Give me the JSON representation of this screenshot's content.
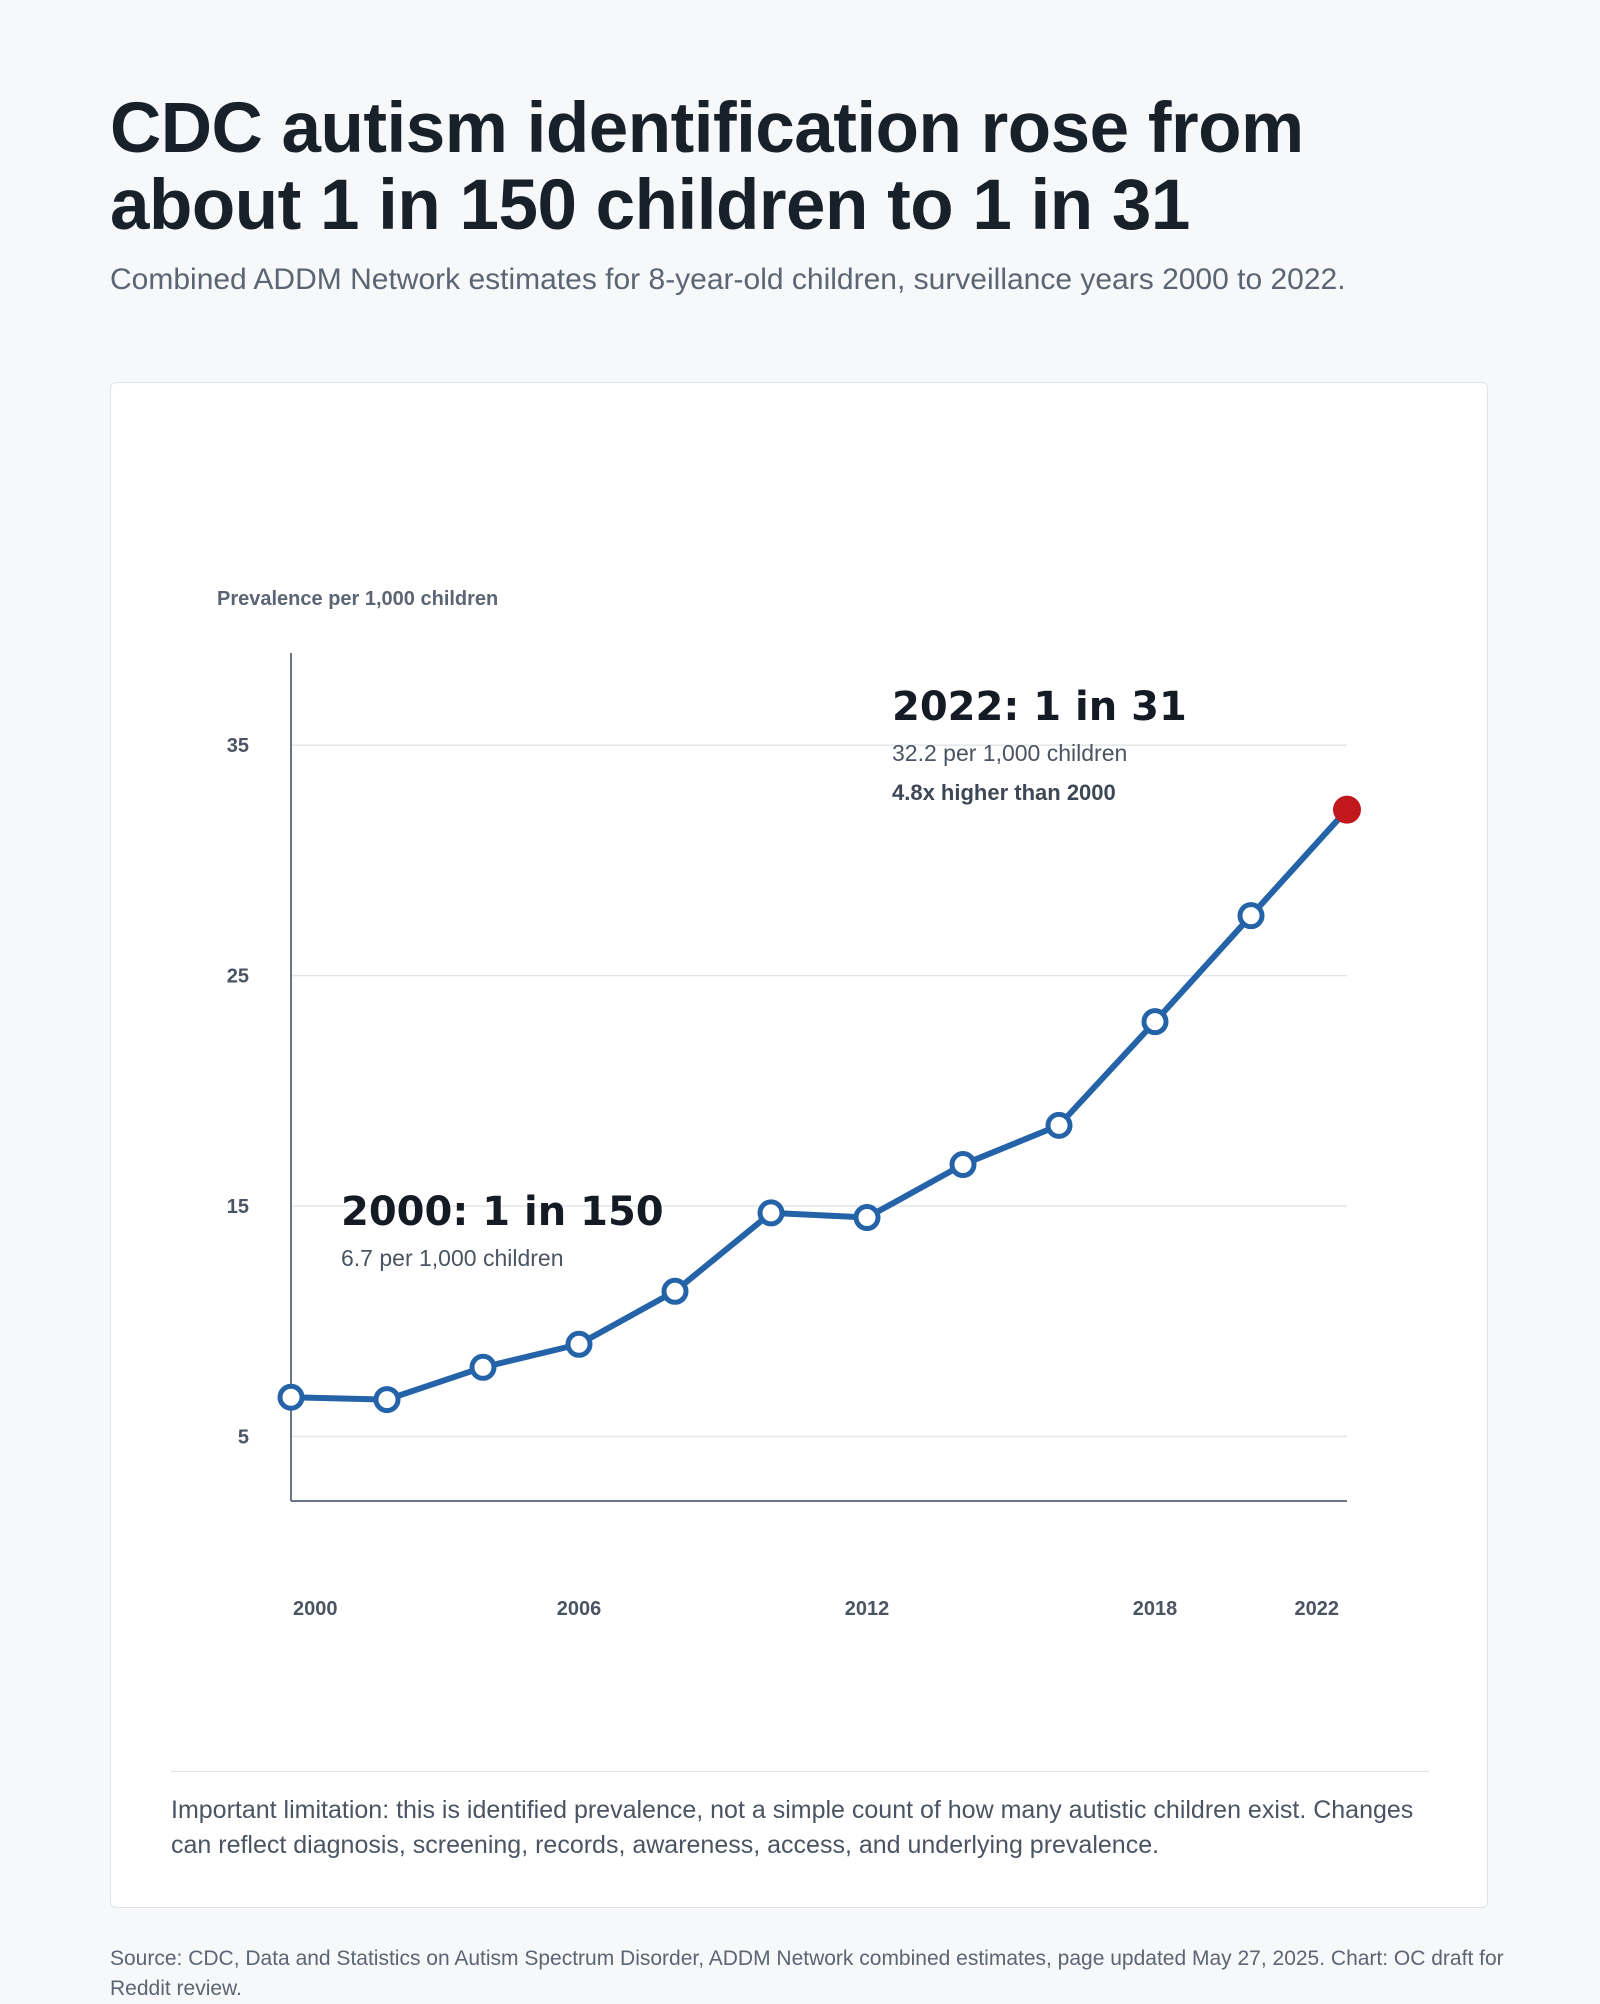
{
  "page": {
    "title": "CDC autism identification rose from about 1 in 150 children to 1 in 31",
    "subtitle": "Combined ADDM Network estimates for 8-year-old children, surveillance years 2000 to 2022.",
    "limitation": "Important limitation: this is identified prevalence, not a simple count of how many autistic children exist. Changes can reflect diagnosis, screening, records, awareness, access, and underlying prevalence.",
    "source": "Source: CDC, Data and Statistics on Autism Spectrum Disorder, ADDM Network combined estimates, page updated May 27, 2025. Chart: OC draft for Reddit review."
  },
  "chart_data": {
    "type": "line",
    "ylabel": "Prevalence per 1,000 children",
    "xlabel": "",
    "x": [
      2000,
      2002,
      2004,
      2006,
      2008,
      2010,
      2012,
      2014,
      2016,
      2018,
      2020,
      2022
    ],
    "y": [
      6.7,
      6.6,
      8.0,
      9.0,
      11.3,
      14.7,
      14.5,
      16.8,
      18.5,
      23.0,
      27.6,
      32.2
    ],
    "x_ticks": [
      "2000",
      "2006",
      "2012",
      "2018",
      "2022"
    ],
    "y_ticks": [
      "5",
      "15",
      "25",
      "35"
    ],
    "ylim": [
      3.5,
      39
    ],
    "xlim": [
      2000,
      2022
    ],
    "grid": "horizontal",
    "colors": {
      "line": "#2563a8",
      "highlight": "#c0181c",
      "marker_fill": "#ffffff"
    },
    "annotations": {
      "start": {
        "title": "2000: 1 in 150",
        "detail": "6.7 per 1,000 children"
      },
      "end": {
        "title": "2022: 1 in 31",
        "detail": "32.2 per 1,000 children",
        "note": "4.8x higher than 2000"
      }
    }
  }
}
